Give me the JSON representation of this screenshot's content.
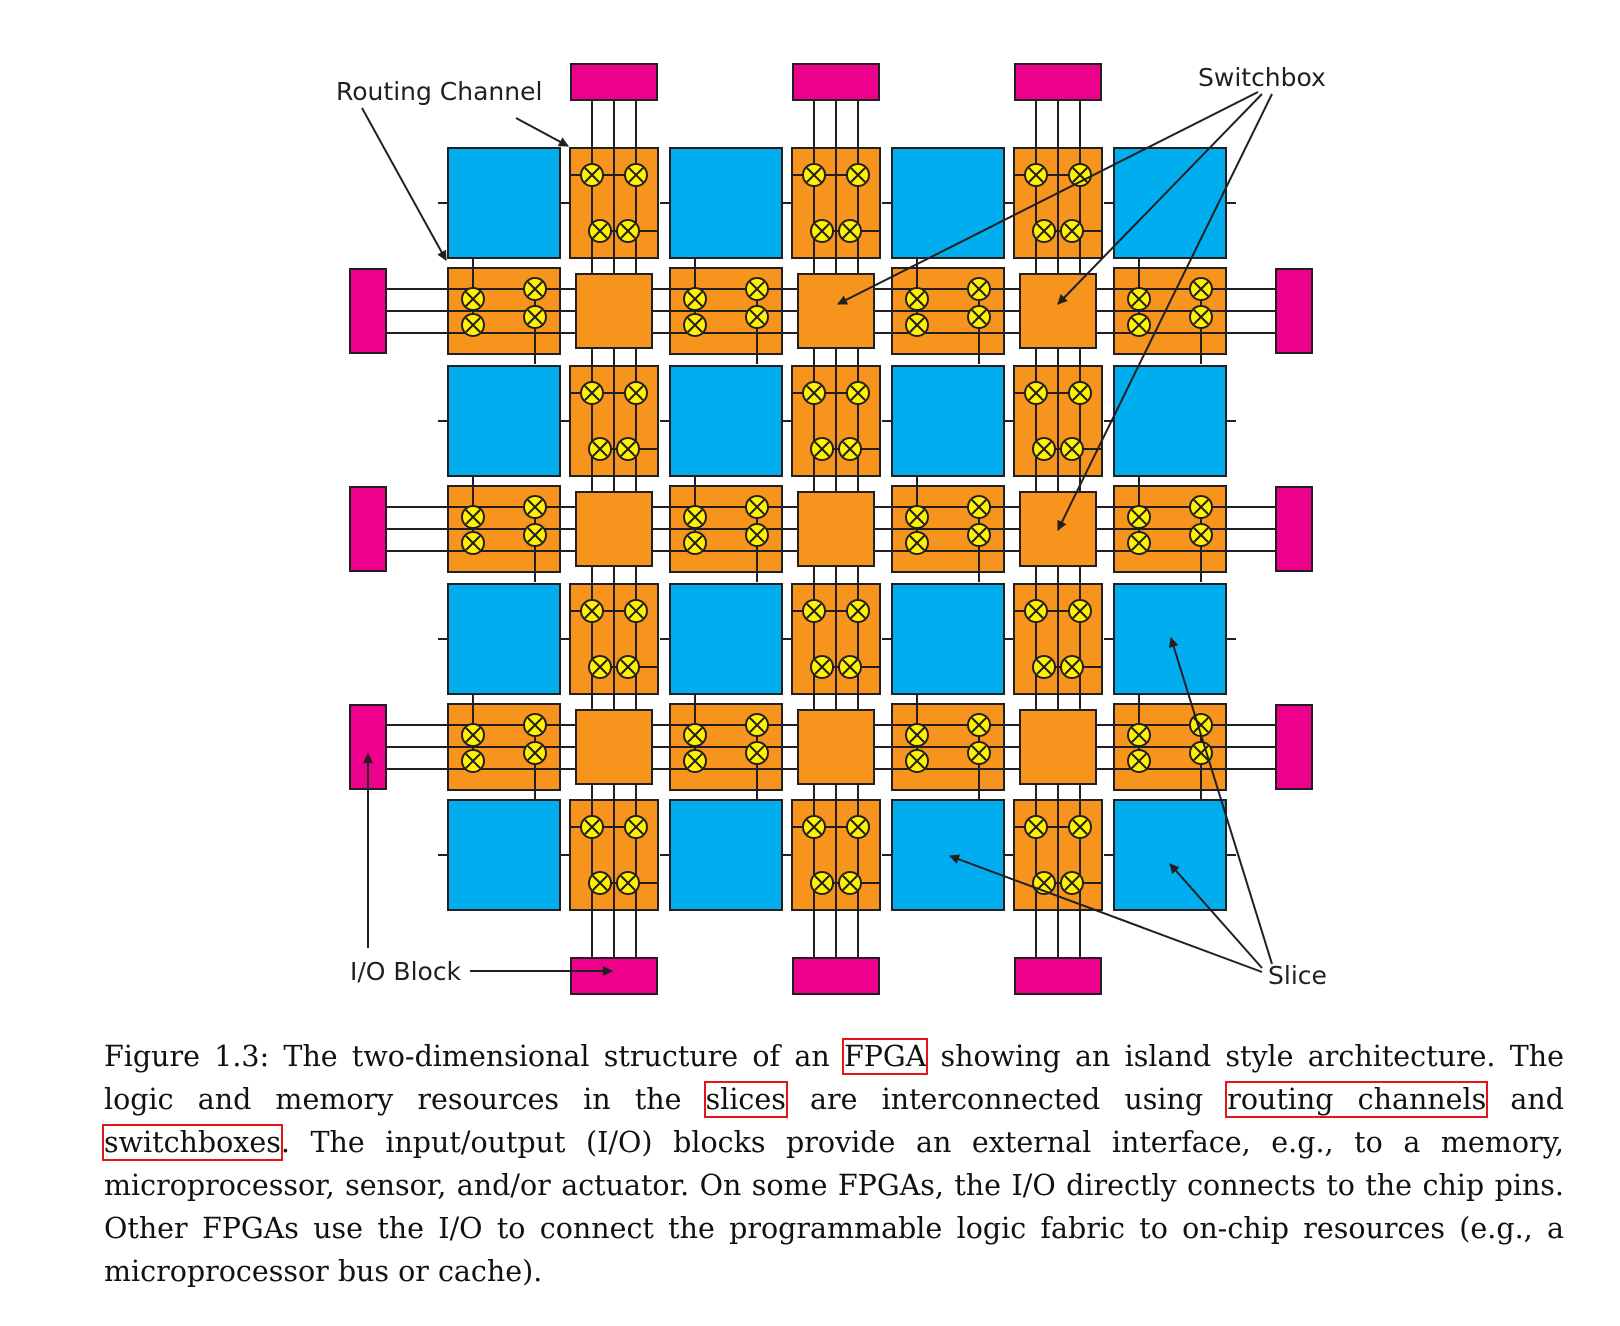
{
  "colors": {
    "slice": "#00aeef",
    "routing": "#f7941d",
    "switchbox": "#f7941d",
    "io_block": "#ec008c",
    "switch_point": "#fff200",
    "highlight": "#e4141c"
  },
  "labels": {
    "routing_channel": "Routing Channel",
    "switchbox": "Switchbox",
    "io_block": "I/O Block",
    "slice": "Slice"
  },
  "caption": {
    "prefix": "Figure 1.3: The two-dimensional structure of an ",
    "fpga": "FPGA",
    "part2": " showing an island style architecture. The logic and memory resources in the ",
    "slices": "slices",
    "part3": " are interconnected using ",
    "routing_channels": "routing channels",
    "part4": " and ",
    "switchboxes": "switchboxes",
    "part5": ". The input/output (I/O) blocks provide an external interface, e.g., to a memory, microprocessor, sensor, and/or actuator. On some FPGAs, the I/O directly connects to the chip pins. Other FPGAs use the I/O to connect the programmable logic fabric to on-chip resources (e.g., a microprocessor bus or cache)."
  }
}
